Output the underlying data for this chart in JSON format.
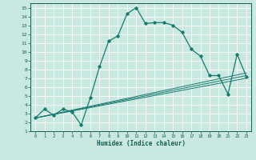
{
  "xlabel": "Humidex (Indice chaleur)",
  "bg_color": "#c8e8e0",
  "line_color": "#1a7a6e",
  "xlim": [
    -0.5,
    23.5
  ],
  "ylim": [
    1,
    15.5
  ],
  "xticks": [
    0,
    1,
    2,
    3,
    4,
    5,
    6,
    7,
    8,
    9,
    10,
    11,
    12,
    13,
    14,
    15,
    16,
    17,
    18,
    19,
    20,
    21,
    22,
    23
  ],
  "yticks": [
    1,
    2,
    3,
    4,
    5,
    6,
    7,
    8,
    9,
    10,
    11,
    12,
    13,
    14,
    15
  ],
  "main_line_x": [
    0,
    1,
    2,
    3,
    4,
    5,
    6,
    7,
    8,
    9,
    10,
    11,
    12,
    13,
    14,
    15,
    16,
    17,
    18,
    19,
    20,
    21,
    22,
    23
  ],
  "main_line_y": [
    2.5,
    3.5,
    2.8,
    3.5,
    3.2,
    1.7,
    4.8,
    8.3,
    11.2,
    11.8,
    14.3,
    15.0,
    13.2,
    13.3,
    13.3,
    13.0,
    12.2,
    10.3,
    9.5,
    7.3,
    7.3,
    5.2,
    9.7,
    7.2
  ],
  "line2_x": [
    0,
    23
  ],
  "line2_y": [
    2.5,
    7.0
  ],
  "line3_x": [
    0,
    23
  ],
  "line3_y": [
    2.5,
    7.3
  ],
  "line4_x": [
    0,
    23
  ],
  "line4_y": [
    2.5,
    7.6
  ]
}
